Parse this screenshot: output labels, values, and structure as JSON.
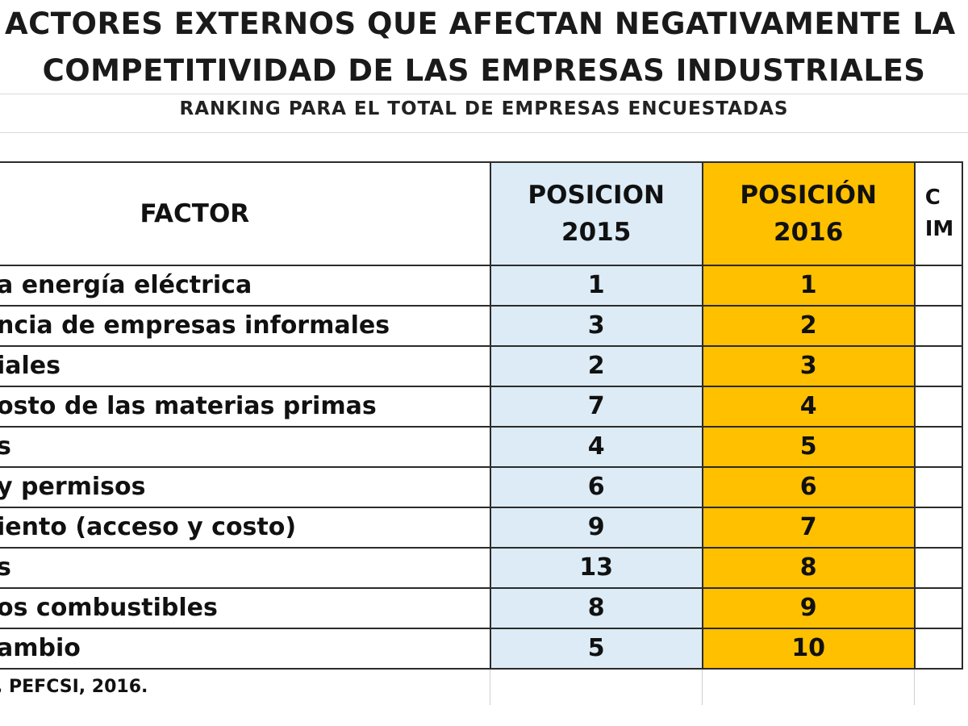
{
  "title": {
    "line1": "ACTORES EXTERNOS QUE AFECTAN NEGATIVAMENTE LA",
    "line2": "COMPETITIVIDAD DE LAS EMPRESAS INDUSTRIALES",
    "subtitle": "RANKING PARA EL TOTAL DE EMPRESAS ENCUESTADAS"
  },
  "table": {
    "headers": {
      "factor": "FACTOR",
      "pos2015_line1": "POSICION",
      "pos2015_line2": "2015",
      "pos2016_line1": "POSICIÓN",
      "pos2016_line2": "2016",
      "extra_line1": "C",
      "extra_line2": "IM"
    },
    "rows": [
      {
        "factor": "a energía eléctrica",
        "pos2015": "1",
        "pos2016": "1"
      },
      {
        "factor": "ncia de empresas informales",
        "pos2015": "3",
        "pos2016": "2"
      },
      {
        "factor": "iales",
        "pos2015": "2",
        "pos2016": "3"
      },
      {
        "factor": "osto de las materias primas",
        "pos2015": "7",
        "pos2016": "4"
      },
      {
        "factor": "s",
        "pos2015": "4",
        "pos2016": "5"
      },
      {
        "factor": "y permisos",
        "pos2015": "6",
        "pos2016": "6"
      },
      {
        "factor": "iento (acceso y costo)",
        "pos2015": "9",
        "pos2016": "7"
      },
      {
        "factor": "s",
        "pos2015": "13",
        "pos2016": "8"
      },
      {
        "factor": "os combustibles",
        "pos2015": "8",
        "pos2016": "9"
      },
      {
        "factor": "ambio",
        "pos2015": "5",
        "pos2016": "10"
      }
    ],
    "source": ", PEFCSI, 2016."
  },
  "colors": {
    "col2015_bg": "#dcebf5",
    "col2016_bg": "#ffc000",
    "border": "#2b2b2b"
  }
}
